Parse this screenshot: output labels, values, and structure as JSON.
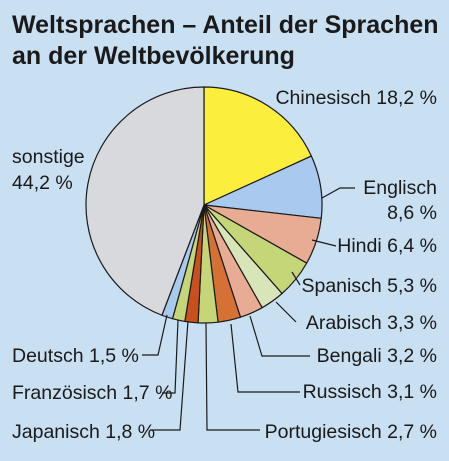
{
  "chart_data": {
    "type": "pie",
    "title": "Weltsprachen – Anteil der Sprachen",
    "subtitle": "an der Weltbevölkerung",
    "unit": "%",
    "slices": [
      {
        "name": "Chinesisch",
        "value": 18.2,
        "value_label": "18,2 %",
        "color": "#fbee3c"
      },
      {
        "name": "Englisch",
        "value": 8.6,
        "value_label": "8,6 %",
        "color": "#a9c9ee"
      },
      {
        "name": "Hindi",
        "value": 6.4,
        "value_label": "6,4 %",
        "color": "#e8ab93"
      },
      {
        "name": "Spanisch",
        "value": 5.3,
        "value_label": "5,3 %",
        "color": "#c4d677"
      },
      {
        "name": "Arabisch",
        "value": 3.3,
        "value_label": "3,3 %",
        "color": "#d8e5b8"
      },
      {
        "name": "Bengali",
        "value": 3.2,
        "value_label": "3,2 %",
        "color": "#e8ab93"
      },
      {
        "name": "Russisch",
        "value": 3.1,
        "value_label": "3,1 %",
        "color": "#d67135"
      },
      {
        "name": "Portugiesisch",
        "value": 2.7,
        "value_label": "2,7 %",
        "color": "#c4d677"
      },
      {
        "name": "Japanisch",
        "value": 1.8,
        "value_label": "1,8 %",
        "color": "#c9501e"
      },
      {
        "name": "Französisch",
        "value": 1.7,
        "value_label": "1,7 %",
        "color": "#c4d677"
      },
      {
        "name": "Deutsch",
        "value": 1.5,
        "value_label": "1,5 %",
        "color": "#a9c9ee"
      },
      {
        "name": "sonstige",
        "value": 44.2,
        "value_label": "44,2 %",
        "color": "#d7d9dc"
      }
    ]
  }
}
